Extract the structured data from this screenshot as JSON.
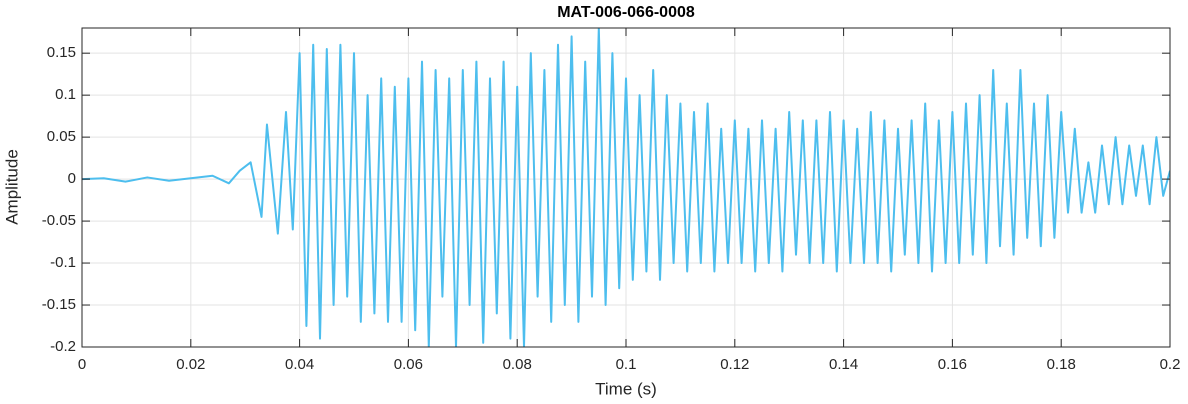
{
  "chart_data": {
    "type": "line",
    "title": "MAT-006-066-0008",
    "x_label": "Time (s)",
    "y_label": "Amplitude",
    "xlim": [
      0,
      0.2
    ],
    "ylim": [
      -0.2,
      0.18
    ],
    "xticks": [
      0,
      0.02,
      0.04,
      0.06,
      0.08,
      0.1,
      0.12,
      0.14,
      0.16,
      0.18,
      0.2
    ],
    "yticks": [
      -0.2,
      -0.15,
      -0.1,
      -0.05,
      0,
      0.05,
      0.1,
      0.15
    ],
    "grid": true,
    "x": [
      0,
      0.004,
      0.008,
      0.012,
      0.016,
      0.02,
      0.024,
      0.027,
      0.029,
      0.031,
      0.033,
      0.034,
      0.036,
      0.0375,
      0.03875,
      0.04,
      0.04125,
      0.0425,
      0.04375,
      0.045,
      0.04625,
      0.0475,
      0.04875,
      0.05,
      0.05125,
      0.0525,
      0.05375,
      0.055,
      0.05625,
      0.0575,
      0.05875,
      0.06,
      0.06125,
      0.0625,
      0.06375,
      0.065,
      0.06625,
      0.0675,
      0.06875,
      0.07,
      0.07125,
      0.0725,
      0.07375,
      0.075,
      0.07625,
      0.0775,
      0.07875,
      0.08,
      0.08125,
      0.0825,
      0.08375,
      0.085,
      0.08625,
      0.0875,
      0.08875,
      0.09,
      0.09125,
      0.0925,
      0.09375,
      0.095,
      0.09625,
      0.0975,
      0.09875,
      0.1,
      0.10125,
      0.1025,
      0.10375,
      0.105,
      0.10625,
      0.1075,
      0.10875,
      0.11,
      0.11125,
      0.1125,
      0.11375,
      0.115,
      0.11625,
      0.1175,
      0.11875,
      0.12,
      0.12125,
      0.1225,
      0.12375,
      0.125,
      0.12625,
      0.1275,
      0.12875,
      0.13,
      0.13125,
      0.1325,
      0.13375,
      0.135,
      0.13625,
      0.1375,
      0.13875,
      0.14,
      0.14125,
      0.1425,
      0.14375,
      0.145,
      0.14625,
      0.1475,
      0.14875,
      0.15,
      0.15125,
      0.1525,
      0.15375,
      0.155,
      0.15625,
      0.1575,
      0.15875,
      0.16,
      0.16125,
      0.1625,
      0.16375,
      0.165,
      0.16625,
      0.1675,
      0.16875,
      0.17,
      0.17125,
      0.1725,
      0.17375,
      0.175,
      0.17625,
      0.1775,
      0.17875,
      0.18,
      0.18125,
      0.1825,
      0.18375,
      0.185,
      0.18625,
      0.1875,
      0.18875,
      0.19,
      0.19125,
      0.1925,
      0.19375,
      0.195,
      0.19625,
      0.1975,
      0.19875,
      0.2
    ],
    "series": [
      {
        "name": "Amplitude",
        "color": "#4dbeee",
        "values": [
          0,
          0.001,
          -0.003,
          0.002,
          -0.002,
          0.001,
          0.004,
          -0.005,
          0.01,
          0.02,
          -0.045,
          0.065,
          -0.065,
          0.08,
          -0.06,
          0.15,
          -0.175,
          0.16,
          -0.19,
          0.155,
          -0.15,
          0.16,
          -0.14,
          0.15,
          -0.17,
          0.1,
          -0.16,
          0.12,
          -0.17,
          0.11,
          -0.17,
          0.12,
          -0.18,
          0.14,
          -0.2,
          0.13,
          -0.14,
          0.12,
          -0.2,
          0.13,
          -0.15,
          0.14,
          -0.195,
          0.12,
          -0.16,
          0.14,
          -0.19,
          0.11,
          -0.2,
          0.15,
          -0.14,
          0.13,
          -0.17,
          0.16,
          -0.15,
          0.17,
          -0.17,
          0.14,
          -0.14,
          0.18,
          -0.15,
          0.15,
          -0.13,
          0.12,
          -0.12,
          0.1,
          -0.11,
          0.13,
          -0.12,
          0.1,
          -0.1,
          0.09,
          -0.11,
          0.08,
          -0.1,
          0.09,
          -0.11,
          0.06,
          -0.1,
          0.07,
          -0.1,
          0.06,
          -0.11,
          0.07,
          -0.1,
          0.06,
          -0.11,
          0.08,
          -0.09,
          0.07,
          -0.1,
          0.07,
          -0.1,
          0.08,
          -0.11,
          0.07,
          -0.1,
          0.06,
          -0.1,
          0.08,
          -0.1,
          0.07,
          -0.11,
          0.06,
          -0.09,
          0.07,
          -0.1,
          0.09,
          -0.11,
          0.07,
          -0.1,
          0.08,
          -0.1,
          0.09,
          -0.09,
          0.1,
          -0.1,
          0.13,
          -0.08,
          0.09,
          -0.09,
          0.13,
          -0.07,
          0.09,
          -0.08,
          0.1,
          -0.07,
          0.08,
          -0.04,
          0.06,
          -0.04,
          0.02,
          -0.04,
          0.04,
          -0.03,
          0.05,
          -0.03,
          0.04,
          -0.02,
          0.04,
          -0.03,
          0.05,
          -0.02,
          0.01
        ]
      }
    ]
  }
}
